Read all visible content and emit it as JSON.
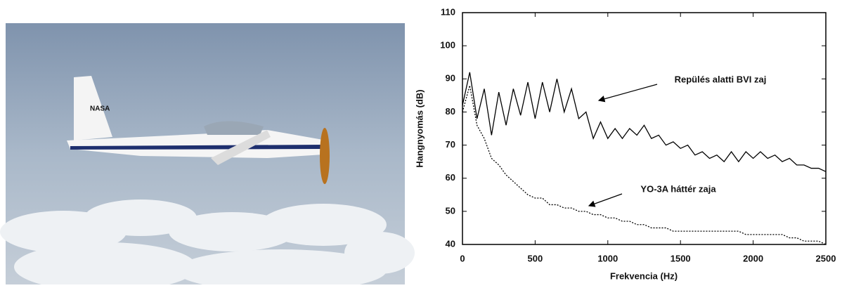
{
  "chart_data": {
    "type": "line",
    "xlabel": "Frekvencia (Hz)",
    "ylabel": "Hangnyomás (dB)",
    "x": [
      0,
      50,
      100,
      150,
      200,
      250,
      300,
      350,
      400,
      450,
      500,
      550,
      600,
      650,
      700,
      750,
      800,
      850,
      900,
      950,
      1000,
      1050,
      1100,
      1150,
      1200,
      1250,
      1300,
      1350,
      1400,
      1450,
      1500,
      1550,
      1600,
      1650,
      1700,
      1750,
      1800,
      1850,
      1900,
      1950,
      2000,
      2050,
      2100,
      2150,
      2200,
      2250,
      2300,
      2350,
      2400,
      2450,
      2500
    ],
    "series": [
      {
        "name": "Repülés alatti BVI zaj",
        "color": "#000000",
        "style": "solid",
        "values": [
          82,
          92,
          78,
          87,
          73,
          86,
          76,
          87,
          79,
          89,
          78,
          89,
          80,
          90,
          80,
          87,
          78,
          80,
          72,
          77,
          72,
          75,
          72,
          75,
          73,
          76,
          72,
          73,
          70,
          71,
          69,
          70,
          67,
          68,
          66,
          67,
          65,
          68,
          65,
          68,
          66,
          68,
          66,
          67,
          65,
          66,
          64,
          64,
          63,
          63,
          62
        ]
      },
      {
        "name": "YO-3A háttér zaja",
        "color": "#000000",
        "style": "dotted",
        "values": [
          80,
          88,
          76,
          72,
          66,
          64,
          61,
          59,
          57,
          55,
          54,
          54,
          52,
          52,
          51,
          51,
          50,
          50,
          49,
          49,
          48,
          48,
          47,
          47,
          46,
          46,
          45,
          45,
          45,
          44,
          44,
          44,
          44,
          44,
          44,
          44,
          44,
          44,
          44,
          43,
          43,
          43,
          43,
          43,
          43,
          42,
          42,
          41,
          41,
          41,
          40
        ]
      }
    ],
    "xlim": [
      0,
      2500
    ],
    "xticks": [
      0,
      500,
      1000,
      1500,
      2000,
      2500
    ],
    "ylim": [
      40,
      110
    ],
    "yticks": [
      40,
      50,
      60,
      70,
      80,
      90,
      100,
      110
    ]
  }
}
